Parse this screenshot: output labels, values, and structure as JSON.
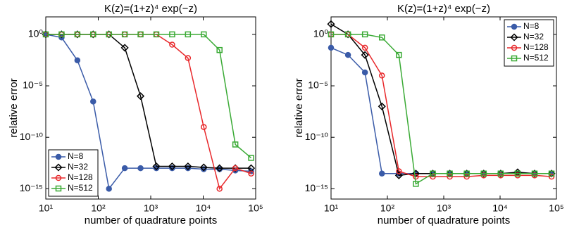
{
  "chart_data": [
    {
      "type": "line",
      "title": "K(z)=(1+z)⁴ exp(−z)",
      "xlabel": "number of quadrature points",
      "ylabel": "relative error",
      "xscale": "log",
      "yscale": "log",
      "legend": "lower left",
      "x": [
        10,
        20,
        40,
        80,
        160,
        320,
        640,
        1280,
        2560,
        5120,
        10240,
        20480,
        40960,
        81920
      ],
      "xlim": [
        10,
        100000
      ],
      "xticks": [
        {
          "value": 10,
          "label": "10¹"
        },
        {
          "value": 100,
          "label": "10²"
        },
        {
          "value": 1000,
          "label": "10³"
        },
        {
          "value": 10000,
          "label": "10⁴"
        },
        {
          "value": 100000,
          "label": "10⁵"
        }
      ],
      "ylim": [
        1e-16,
        50
      ],
      "yticks": [
        {
          "value": 1,
          "label": "10⁰"
        },
        {
          "value": 1e-05,
          "label": "10⁻⁵"
        },
        {
          "value": 1e-10,
          "label": "10⁻¹⁰"
        },
        {
          "value": 1e-15,
          "label": "10⁻¹⁵"
        }
      ],
      "series": [
        {
          "name": "N=8",
          "color": "#3a5ba8",
          "marker": "circle",
          "marker_fill": true,
          "values": [
            1,
            0.5,
            0.003,
            3e-07,
            1e-15,
            1e-13,
            1e-13,
            1e-13,
            1e-13,
            1e-13,
            8e-14,
            8e-14,
            6e-14,
            5e-14
          ]
        },
        {
          "name": "N=32",
          "color": "#000000",
          "marker": "diamond",
          "marker_fill": false,
          "values": [
            1,
            1,
            1,
            1,
            1,
            0.05,
            1e-06,
            1.5e-13,
            1.5e-13,
            1.5e-13,
            1.2e-13,
            1e-13,
            1e-13,
            1e-13
          ]
        },
        {
          "name": "N=128",
          "color": "#e8282b",
          "marker": "circle",
          "marker_fill": false,
          "values": [
            1,
            1,
            1,
            1,
            1,
            1,
            1,
            1,
            0.1,
            0.005,
            1e-09,
            1e-15,
            1e-13,
            3e-14
          ]
        },
        {
          "name": "N=512",
          "color": "#3aaa35",
          "marker": "square",
          "marker_fill": false,
          "values": [
            1,
            1,
            1,
            1,
            1,
            1,
            1,
            1,
            1,
            1,
            1,
            0.03,
            2e-11,
            1e-12
          ]
        }
      ]
    },
    {
      "type": "line",
      "title": "K(z)=(1+z)⁴ exp(−z)",
      "xlabel": "number of quadrature points",
      "ylabel": "relative error",
      "xscale": "log",
      "yscale": "log",
      "legend": "upper right",
      "x": [
        10,
        20,
        40,
        80,
        160,
        320,
        640,
        1280,
        2560,
        5120,
        10240,
        20480,
        40960,
        81920
      ],
      "xlim": [
        10,
        100000
      ],
      "xticks": [
        {
          "value": 10,
          "label": "10¹"
        },
        {
          "value": 100,
          "label": "10²"
        },
        {
          "value": 1000,
          "label": "10³"
        },
        {
          "value": 10000,
          "label": "10⁴"
        },
        {
          "value": 100000,
          "label": "10⁵"
        }
      ],
      "ylim": [
        1e-16,
        50
      ],
      "yticks": [
        {
          "value": 1,
          "label": "10⁰"
        },
        {
          "value": 1e-05,
          "label": "10⁻⁵"
        },
        {
          "value": 1e-10,
          "label": "10⁻¹⁰"
        },
        {
          "value": 1e-15,
          "label": "10⁻¹⁵"
        }
      ],
      "series": [
        {
          "name": "N=8",
          "color": "#3a5ba8",
          "marker": "circle",
          "marker_fill": true,
          "values": [
            0.05,
            0.01,
            0.0002,
            3e-14,
            3e-14,
            3e-14,
            3e-14,
            3e-14,
            3e-14,
            3e-14,
            3e-14,
            3e-14,
            3e-14,
            3e-14
          ]
        },
        {
          "name": "N=32",
          "color": "#000000",
          "marker": "diamond",
          "marker_fill": false,
          "values": [
            10,
            1,
            0.01,
            1e-07,
            2e-14,
            3e-14,
            3e-14,
            3e-14,
            3e-14,
            3e-14,
            3e-14,
            4e-14,
            3e-14,
            3e-14
          ]
        },
        {
          "name": "N=128",
          "color": "#e8282b",
          "marker": "circle",
          "marker_fill": false,
          "values": [
            1,
            1,
            0.05,
            0.0001,
            5e-14,
            1.5e-14,
            1.5e-14,
            1.5e-14,
            1.5e-14,
            2e-14,
            2e-14,
            2e-14,
            2e-14,
            1.5e-14
          ]
        },
        {
          "name": "N=512",
          "color": "#3aaa35",
          "marker": "square",
          "marker_fill": false,
          "values": [
            1,
            1,
            1,
            0.5,
            0.01,
            3e-15,
            3e-14,
            3e-14,
            3e-14,
            3e-14,
            3e-14,
            3e-14,
            3e-14,
            3e-14
          ]
        }
      ]
    }
  ]
}
